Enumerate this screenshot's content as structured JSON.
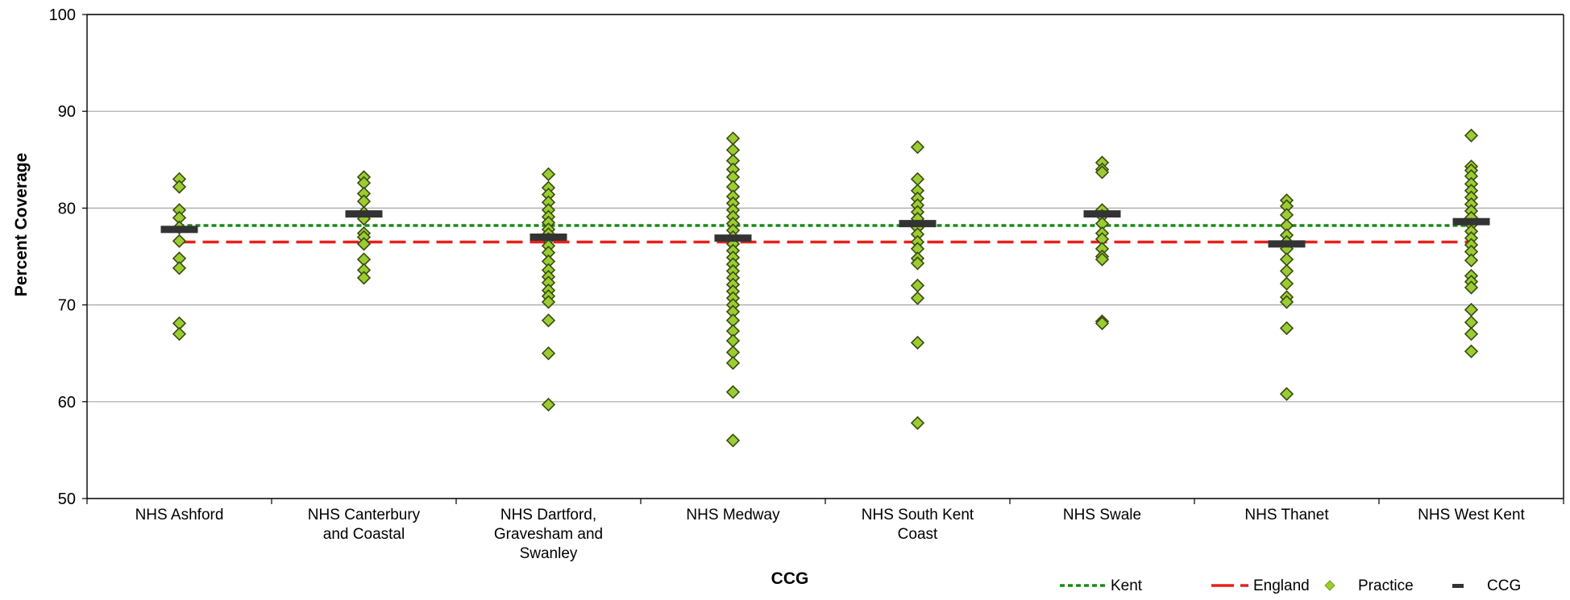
{
  "chart_data": {
    "type": "scatter",
    "title": "",
    "xlabel": "CCG",
    "ylabel": "Percent Coverage",
    "ylim": [
      50,
      100
    ],
    "yticks": [
      "100",
      "90",
      "80",
      "70",
      "60",
      "50"
    ],
    "grid": true,
    "legend_position": "bottom-right",
    "categories": [
      [
        "NHS Ashford"
      ],
      [
        "NHS Canterbury",
        "and Coastal"
      ],
      [
        "NHS Dartford,",
        "Gravesham and",
        "Swanley"
      ],
      [
        "NHS Medway"
      ],
      [
        "NHS South Kent",
        "Coast"
      ],
      [
        "NHS Swale"
      ],
      [
        "NHS Thanet"
      ],
      [
        "NHS West Kent"
      ]
    ],
    "reference_lines": [
      {
        "name": "Kent",
        "value": 78.2,
        "color": "#1a8a1a",
        "style": "dotted"
      },
      {
        "name": "England",
        "value": 76.5,
        "color": "#e8201a",
        "style": "dashed"
      }
    ],
    "legend": [
      {
        "label": "Kent",
        "kind": "dotted-line",
        "color": "#1a8a1a"
      },
      {
        "label": "England",
        "kind": "dashed-line",
        "color": "#e8201a"
      },
      {
        "label": "Practice",
        "kind": "diamond",
        "color": "#9acd32"
      },
      {
        "label": "CCG",
        "kind": "bar",
        "color": "#333333"
      }
    ],
    "series": [
      {
        "name": "Practice",
        "color": "#9acd32",
        "values": [
          [
            83.0,
            82.2,
            79.8,
            79.0,
            78.0,
            76.6,
            74.8,
            73.8,
            68.1,
            67.0
          ],
          [
            83.2,
            82.6,
            81.5,
            80.7,
            79.5,
            78.9,
            77.4,
            77.0,
            76.3,
            74.7,
            73.6,
            72.8
          ],
          [
            83.5,
            82.1,
            81.4,
            80.6,
            79.8,
            79.1,
            78.5,
            77.8,
            77.3,
            76.8,
            76.1,
            75.4,
            74.5,
            73.6,
            72.9,
            72.3,
            71.5,
            70.9,
            70.3,
            68.4,
            65.0,
            59.7
          ],
          [
            87.2,
            86.0,
            84.9,
            84.0,
            83.2,
            82.2,
            81.2,
            80.5,
            79.8,
            79.1,
            78.4,
            77.7,
            77.0,
            76.3,
            75.6,
            74.9,
            74.2,
            73.5,
            72.8,
            72.1,
            71.4,
            70.7,
            70.0,
            69.3,
            68.4,
            67.3,
            66.3,
            65.1,
            64.0,
            61.0,
            56.0
          ],
          [
            86.3,
            83.0,
            81.8,
            81.0,
            80.3,
            79.6,
            78.9,
            78.0,
            77.3,
            76.5,
            75.8,
            74.8,
            74.3,
            72.0,
            70.7,
            66.1,
            57.8
          ],
          [
            84.7,
            84.0,
            83.7,
            79.8,
            79.2,
            78.4,
            77.4,
            76.8,
            75.8,
            75.0,
            74.7,
            68.3,
            68.1
          ],
          [
            80.8,
            80.2,
            79.3,
            78.2,
            77.2,
            76.5,
            75.8,
            74.7,
            73.5,
            72.2,
            70.8,
            70.3,
            67.6,
            60.8
          ],
          [
            87.5,
            84.3,
            83.9,
            83.3,
            82.5,
            81.8,
            81.1,
            80.4,
            79.7,
            79.0,
            78.3,
            77.6,
            76.9,
            76.2,
            75.5,
            74.6,
            73.0,
            72.4,
            71.8,
            69.5,
            68.2,
            67.0,
            65.2
          ]
        ]
      },
      {
        "name": "CCG",
        "color": "#333333",
        "values": [
          77.8,
          79.4,
          77.0,
          76.9,
          78.4,
          79.4,
          76.3,
          78.6
        ]
      }
    ]
  }
}
